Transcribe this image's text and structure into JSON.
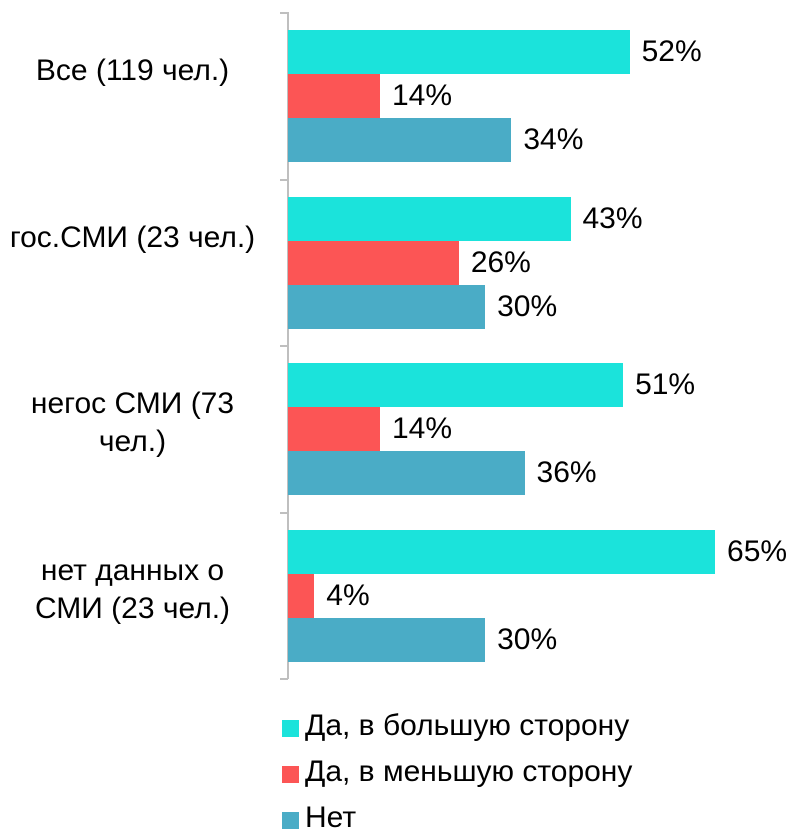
{
  "chart_data": {
    "type": "bar",
    "orientation": "horizontal",
    "categories": [
      "Все  (119 чел.)",
      "гос.СМИ (23 чел.)",
      "негос СМИ (73 чел.)",
      "нет данных о СМИ (23 чел.)"
    ],
    "series": [
      {
        "name": "Да, в большую сторону",
        "color": "#1be3db",
        "values": [
          52,
          43,
          51,
          65
        ],
        "value_labels": [
          "52%",
          "43%",
          "51%",
          "65%"
        ]
      },
      {
        "name": "Да, в меньшую сторону",
        "color": "#fc5555",
        "values": [
          14,
          26,
          14,
          4
        ],
        "value_labels": [
          "14%",
          "26%",
          "14%",
          "4%"
        ]
      },
      {
        "name": "Нет",
        "color": "#4aacc6",
        "values": [
          34,
          30,
          36,
          30
        ],
        "value_labels": [
          "34%",
          "30%",
          "36%",
          "30%"
        ]
      }
    ],
    "xlim": [
      0,
      100
    ],
    "legend": "bottom"
  }
}
